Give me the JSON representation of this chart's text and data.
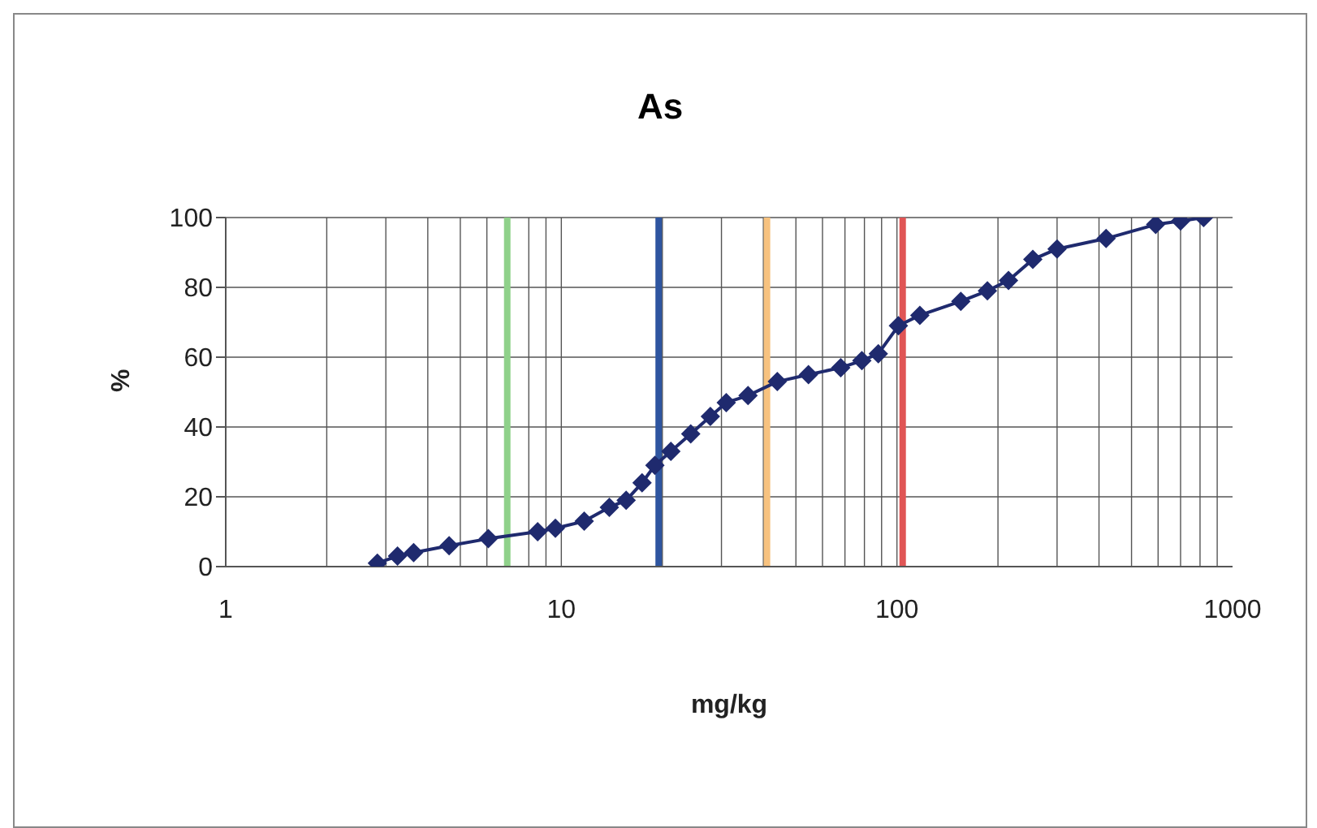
{
  "chart_data": {
    "type": "line",
    "title": "As",
    "xlabel": "mg/kg",
    "ylabel": "%",
    "log": "x",
    "xlim": [
      1,
      1000
    ],
    "xticks": [
      1,
      10,
      100,
      1000
    ],
    "ylim": [
      0,
      100
    ],
    "yticks": [
      0,
      20,
      40,
      60,
      80,
      100
    ],
    "grid": true,
    "legend": false,
    "marker": "diamond",
    "line_style": "solid",
    "series": [
      {
        "color": "#1f2a6e",
        "x": [
          2.83,
          3.25,
          3.63,
          4.63,
          6.06,
          8.5,
          9.6,
          11.7,
          13.9,
          15.6,
          17.4,
          19.0,
          21.2,
          24.3,
          27.8,
          31,
          36,
          44,
          54.5,
          68,
          78.6,
          88,
          101,
          117,
          155,
          186,
          215,
          254,
          300,
          420,
          590,
          700,
          820
        ],
        "values": [
          1,
          3,
          4,
          6,
          8,
          10,
          11,
          13,
          17,
          19,
          24,
          29,
          33,
          38,
          43,
          47,
          49,
          53,
          55,
          57,
          59,
          61,
          69,
          72,
          76,
          79,
          82,
          88,
          91,
          94,
          98,
          99,
          100
        ]
      }
    ],
    "ref_lines": [
      {
        "axis": "x",
        "value": 6.9,
        "color": "#8fd18a",
        "line_style": "solid"
      },
      {
        "axis": "x",
        "value": 19.5,
        "color": "#2e55a0",
        "line_style": "solid"
      },
      {
        "axis": "x",
        "value": 41,
        "color": "#f7c27f",
        "line_style": "solid"
      },
      {
        "axis": "x",
        "value": 104,
        "color": "#e05555",
        "line_style": "solid"
      }
    ]
  }
}
